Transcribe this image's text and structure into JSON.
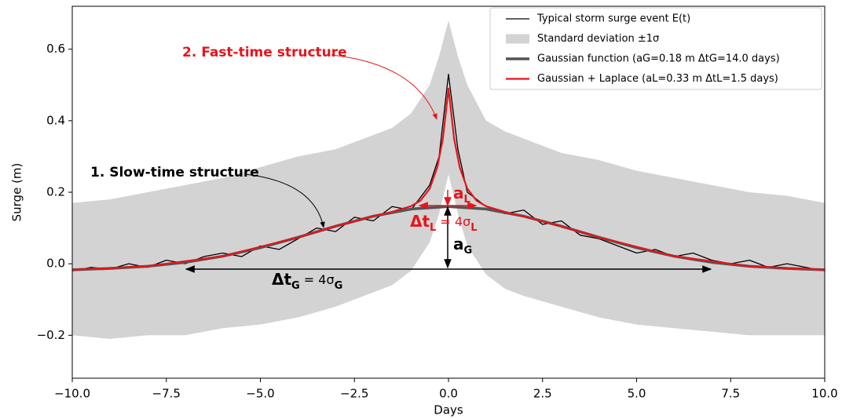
{
  "chart_data": {
    "type": "line",
    "xlabel": "Days",
    "ylabel": "Surge (m)",
    "xlim": [
      -10,
      10
    ],
    "ylim": [
      -0.32,
      0.72
    ],
    "xticks": [
      {
        "value": -10,
        "label": "−10.0"
      },
      {
        "value": -7.5,
        "label": "−7.5"
      },
      {
        "value": -5,
        "label": "−5.0"
      },
      {
        "value": -2.5,
        "label": "−2.5"
      },
      {
        "value": 0,
        "label": "0.0"
      },
      2.5,
      {
        "value": 5,
        "label": "5.0"
      },
      7.5,
      {
        "value": 10,
        "label": "10.0"
      }
    ],
    "yticks": [
      {
        "value": -0.2,
        "label": "−0.2"
      },
      {
        "value": 0,
        "label": "0.0"
      },
      0.2,
      0.4,
      0.6
    ],
    "grid": false,
    "legend": "upper right",
    "series": [
      {
        "name": "Typical storm surge event E(t)",
        "type": "line",
        "color": "#000000",
        "x": [
          -10,
          -9.5,
          -9,
          -8.5,
          -8,
          -7.5,
          -7,
          -6.5,
          -6,
          -5.5,
          -5,
          -4.5,
          -4,
          -3.5,
          -3,
          -2.5,
          -2,
          -1.5,
          -1,
          -0.5,
          -0.25,
          0,
          0.25,
          0.5,
          1,
          1.5,
          2,
          2.5,
          3,
          3.5,
          4,
          4.5,
          5,
          5.5,
          6,
          6.5,
          7,
          7.5,
          8,
          8.5,
          9,
          9.5,
          10
        ],
        "values": [
          -0.02,
          -0.01,
          -0.015,
          0.0,
          -0.01,
          0.01,
          0.0,
          0.02,
          0.03,
          0.02,
          0.05,
          0.04,
          0.07,
          0.1,
          0.09,
          0.13,
          0.12,
          0.16,
          0.15,
          0.22,
          0.3,
          0.53,
          0.32,
          0.2,
          0.16,
          0.14,
          0.15,
          0.11,
          0.12,
          0.08,
          0.07,
          0.05,
          0.03,
          0.04,
          0.02,
          0.03,
          0.01,
          0.0,
          0.01,
          -0.01,
          0.0,
          -0.01,
          -0.02
        ]
      },
      {
        "name": "Standard deviation ±1σ",
        "type": "band",
        "color": "#d3d3d3",
        "x": [
          -10,
          -9,
          -8,
          -7,
          -6,
          -5,
          -4,
          -3,
          -2,
          -1.5,
          -1,
          -0.5,
          -0.25,
          0,
          0.25,
          0.5,
          1,
          1.5,
          2,
          3,
          4,
          5,
          6,
          7,
          8,
          9,
          10
        ],
        "upper": [
          0.17,
          0.18,
          0.2,
          0.22,
          0.24,
          0.27,
          0.3,
          0.32,
          0.36,
          0.38,
          0.42,
          0.5,
          0.58,
          0.68,
          0.58,
          0.5,
          0.4,
          0.37,
          0.35,
          0.31,
          0.29,
          0.26,
          0.24,
          0.22,
          0.2,
          0.19,
          0.17
        ],
        "lower": [
          -0.2,
          -0.21,
          -0.2,
          -0.2,
          -0.18,
          -0.17,
          -0.15,
          -0.12,
          -0.08,
          -0.06,
          -0.02,
          0.06,
          0.14,
          0.25,
          0.14,
          0.05,
          -0.03,
          -0.07,
          -0.09,
          -0.12,
          -0.15,
          -0.17,
          -0.18,
          -0.19,
          -0.2,
          -0.2,
          -0.2
        ]
      },
      {
        "name": "Gaussian function (aG=0.18 m ΔtG=14.0 days)",
        "type": "line",
        "color": "#555555",
        "x": [
          -10,
          -9,
          -8,
          -7,
          -6,
          -5,
          -4,
          -3,
          -2,
          -1,
          0,
          1,
          2,
          3,
          4,
          5,
          6,
          7,
          8,
          9,
          10
        ],
        "values": [
          -0.017,
          -0.013,
          -0.007,
          0.004,
          0.021,
          0.045,
          0.074,
          0.105,
          0.133,
          0.153,
          0.16,
          0.153,
          0.133,
          0.105,
          0.074,
          0.045,
          0.021,
          0.004,
          -0.007,
          -0.013,
          -0.017
        ]
      },
      {
        "name": "Gaussian + Laplace   (aL=0.33 m ΔtL=1.5 days)",
        "type": "line",
        "color": "#e8141b",
        "x": [
          -10,
          -8,
          -6,
          -4,
          -3,
          -2,
          -1.5,
          -1,
          -0.75,
          -0.5,
          -0.3,
          -0.15,
          0,
          0.15,
          0.3,
          0.5,
          0.75,
          1,
          1.5,
          2,
          3,
          4,
          6,
          8,
          10
        ],
        "values": [
          -0.017,
          -0.007,
          0.021,
          0.074,
          0.105,
          0.133,
          0.145,
          0.161,
          0.176,
          0.21,
          0.269,
          0.349,
          0.49,
          0.349,
          0.269,
          0.21,
          0.176,
          0.161,
          0.145,
          0.133,
          0.105,
          0.074,
          0.021,
          -0.007,
          -0.017
        ]
      }
    ],
    "annotations": {
      "fast": "2. Fast-time structure",
      "slow": "1. Slow-time structure",
      "a_L": [
        "a",
        "L"
      ],
      "dt_L": [
        "Δt",
        "L",
        " = 4σ",
        "L"
      ],
      "a_G": [
        "a",
        "G"
      ],
      "dt_G": [
        "Δt",
        "G",
        " = 4σ",
        "G"
      ]
    }
  }
}
